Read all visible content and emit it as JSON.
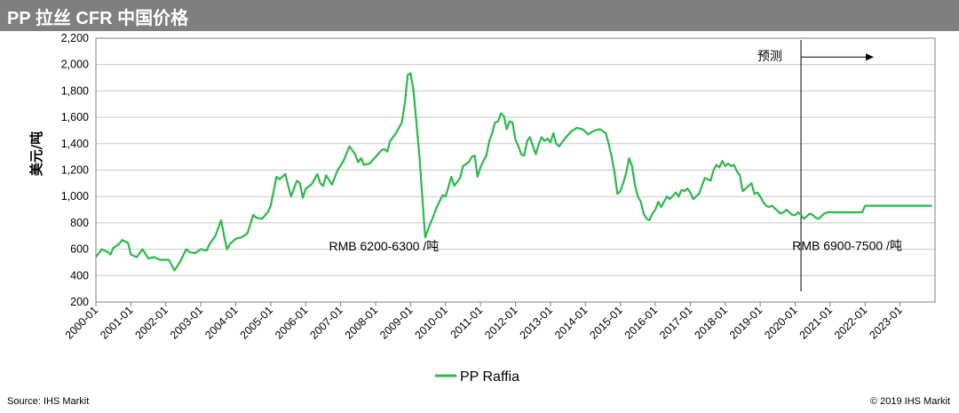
{
  "page": {
    "title": "PP 拉丝 CFR 中国价格",
    "source": "Source: IHS Markit",
    "copyright": "© 2019 IHS Markit"
  },
  "colors": {
    "title_bar": "#7f7f7f",
    "series": "#2db84a",
    "grid": "#c8c8c8"
  },
  "chart_data": {
    "type": "line",
    "title": "PP 拉丝 CFR 中国价格",
    "ylabel": "美元/吨",
    "xlabel": "",
    "ylim": [
      200,
      2200
    ],
    "yticks": [
      200,
      400,
      600,
      800,
      1000,
      1200,
      1400,
      1600,
      1800,
      2000,
      2200
    ],
    "ytick_labels": [
      "200",
      "400",
      "600",
      "800",
      "1,000",
      "1,200",
      "1,400",
      "1,600",
      "1,800",
      "2,000",
      "2,200"
    ],
    "xticks": [
      "2000-01",
      "2001-01",
      "2002-01",
      "2003-01",
      "2004-01",
      "2005-01",
      "2006-01",
      "2007-01",
      "2008-01",
      "2009-01",
      "2010-01",
      "2011-01",
      "2012-01",
      "2013-01",
      "2014-01",
      "2015-01",
      "2016-01",
      "2017-01",
      "2018-01",
      "2019-01",
      "2020-01",
      "2021-01",
      "2022-01",
      "2023-01"
    ],
    "x_end": "2023-12",
    "grid": true,
    "legend": {
      "position": "bottom",
      "entries": [
        "PP Raffia"
      ]
    },
    "annotations": [
      {
        "text": "RMB 6200-6300 /吨",
        "x": "2006-09",
        "y": 590
      },
      {
        "text": "预测",
        "x": "2018-12",
        "y": 2030
      },
      {
        "text": "RMB 6900-7500 /吨",
        "x": "2019-12",
        "y": 595
      }
    ],
    "forecast_start": "2020-03",
    "series": [
      {
        "name": "PP Raffia",
        "points": [
          [
            "2000-01",
            540
          ],
          [
            "2000-03",
            600
          ],
          [
            "2000-05",
            580
          ],
          [
            "2000-06",
            560
          ],
          [
            "2000-07",
            610
          ],
          [
            "2000-09",
            640
          ],
          [
            "2000-10",
            670
          ],
          [
            "2000-12",
            650
          ],
          [
            "2001-01",
            560
          ],
          [
            "2001-03",
            540
          ],
          [
            "2001-05",
            600
          ],
          [
            "2001-07",
            530
          ],
          [
            "2001-09",
            540
          ],
          [
            "2001-11",
            520
          ],
          [
            "2002-02",
            520
          ],
          [
            "2002-04",
            440
          ],
          [
            "2002-06",
            510
          ],
          [
            "2002-08",
            600
          ],
          [
            "2002-09",
            580
          ],
          [
            "2002-11",
            570
          ],
          [
            "2003-01",
            600
          ],
          [
            "2003-03",
            590
          ],
          [
            "2003-04",
            640
          ],
          [
            "2003-06",
            700
          ],
          [
            "2003-08",
            820
          ],
          [
            "2003-09",
            700
          ],
          [
            "2003-10",
            600
          ],
          [
            "2003-11",
            640
          ],
          [
            "2004-01",
            680
          ],
          [
            "2004-03",
            690
          ],
          [
            "2004-05",
            720
          ],
          [
            "2004-07",
            860
          ],
          [
            "2004-08",
            840
          ],
          [
            "2004-10",
            830
          ],
          [
            "2004-12",
            880
          ],
          [
            "2005-01",
            930
          ],
          [
            "2005-03",
            1150
          ],
          [
            "2005-04",
            1130
          ],
          [
            "2005-06",
            1170
          ],
          [
            "2005-07",
            1080
          ],
          [
            "2005-08",
            1000
          ],
          [
            "2005-10",
            1120
          ],
          [
            "2005-11",
            1100
          ],
          [
            "2005-12",
            990
          ],
          [
            "2006-01",
            1060
          ],
          [
            "2006-03",
            1090
          ],
          [
            "2006-05",
            1170
          ],
          [
            "2006-06",
            1100
          ],
          [
            "2006-07",
            1080
          ],
          [
            "2006-08",
            1160
          ],
          [
            "2006-10",
            1090
          ],
          [
            "2006-12",
            1200
          ],
          [
            "2007-02",
            1270
          ],
          [
            "2007-04",
            1380
          ],
          [
            "2007-06",
            1320
          ],
          [
            "2007-07",
            1260
          ],
          [
            "2007-08",
            1290
          ],
          [
            "2007-09",
            1240
          ],
          [
            "2007-11",
            1250
          ],
          [
            "2008-01",
            1300
          ],
          [
            "2008-03",
            1350
          ],
          [
            "2008-04",
            1360
          ],
          [
            "2008-05",
            1340
          ],
          [
            "2008-06",
            1420
          ],
          [
            "2008-08",
            1480
          ],
          [
            "2008-10",
            1560
          ],
          [
            "2008-11",
            1700
          ],
          [
            "2008-12",
            1920
          ],
          [
            "2009-01",
            1935
          ],
          [
            "2009-02",
            1800
          ],
          [
            "2009-04",
            1320
          ],
          [
            "2009-06",
            690
          ],
          [
            "2009-07",
            750
          ],
          [
            "2009-09",
            860
          ],
          [
            "2009-10",
            920
          ],
          [
            "2009-12",
            1010
          ],
          [
            "2010-01",
            1000
          ],
          [
            "2010-02",
            1070
          ],
          [
            "2010-03",
            1150
          ],
          [
            "2010-04",
            1080
          ],
          [
            "2010-06",
            1140
          ],
          [
            "2010-07",
            1230
          ],
          [
            "2010-09",
            1260
          ],
          [
            "2010-10",
            1300
          ],
          [
            "2010-11",
            1310
          ],
          [
            "2010-12",
            1150
          ],
          [
            "2011-01",
            1220
          ],
          [
            "2011-02",
            1270
          ],
          [
            "2011-03",
            1310
          ],
          [
            "2011-04",
            1420
          ],
          [
            "2011-05",
            1480
          ],
          [
            "2011-06",
            1560
          ],
          [
            "2011-07",
            1570
          ],
          [
            "2011-08",
            1630
          ],
          [
            "2011-09",
            1610
          ],
          [
            "2011-10",
            1510
          ],
          [
            "2011-11",
            1570
          ],
          [
            "2011-12",
            1560
          ],
          [
            "2012-01",
            1430
          ],
          [
            "2012-02",
            1380
          ],
          [
            "2012-03",
            1320
          ],
          [
            "2012-04",
            1310
          ],
          [
            "2012-05",
            1420
          ],
          [
            "2012-06",
            1450
          ],
          [
            "2012-07",
            1380
          ],
          [
            "2012-08",
            1320
          ],
          [
            "2012-09",
            1400
          ],
          [
            "2012-10",
            1450
          ],
          [
            "2012-11",
            1420
          ],
          [
            "2012-12",
            1440
          ],
          [
            "2013-01",
            1410
          ],
          [
            "2013-02",
            1480
          ],
          [
            "2013-03",
            1400
          ],
          [
            "2013-04",
            1380
          ],
          [
            "2013-05",
            1410
          ],
          [
            "2013-06",
            1440
          ],
          [
            "2013-08",
            1490
          ],
          [
            "2013-10",
            1520
          ],
          [
            "2013-12",
            1510
          ],
          [
            "2014-01",
            1490
          ],
          [
            "2014-02",
            1470
          ],
          [
            "2014-04",
            1500
          ],
          [
            "2014-06",
            1510
          ],
          [
            "2014-08",
            1480
          ],
          [
            "2014-09",
            1400
          ],
          [
            "2014-10",
            1300
          ],
          [
            "2014-11",
            1180
          ],
          [
            "2014-12",
            1020
          ],
          [
            "2015-01",
            1040
          ],
          [
            "2015-02",
            1100
          ],
          [
            "2015-03",
            1180
          ],
          [
            "2015-04",
            1290
          ],
          [
            "2015-05",
            1230
          ],
          [
            "2015-06",
            1090
          ],
          [
            "2015-07",
            1000
          ],
          [
            "2015-08",
            960
          ],
          [
            "2015-09",
            870
          ],
          [
            "2015-10",
            830
          ],
          [
            "2015-11",
            820
          ],
          [
            "2015-12",
            870
          ],
          [
            "2016-01",
            900
          ],
          [
            "2016-02",
            960
          ],
          [
            "2016-03",
            920
          ],
          [
            "2016-04",
            960
          ],
          [
            "2016-05",
            1000
          ],
          [
            "2016-06",
            980
          ],
          [
            "2016-08",
            1030
          ],
          [
            "2016-09",
            1000
          ],
          [
            "2016-10",
            1050
          ],
          [
            "2016-11",
            1040
          ],
          [
            "2016-12",
            1060
          ],
          [
            "2017-01",
            1030
          ],
          [
            "2017-02",
            980
          ],
          [
            "2017-04",
            1020
          ],
          [
            "2017-05",
            1080
          ],
          [
            "2017-06",
            1140
          ],
          [
            "2017-08",
            1120
          ],
          [
            "2017-09",
            1200
          ],
          [
            "2017-10",
            1240
          ],
          [
            "2017-11",
            1220
          ],
          [
            "2017-12",
            1270
          ],
          [
            "2018-01",
            1230
          ],
          [
            "2018-02",
            1250
          ],
          [
            "2018-03",
            1230
          ],
          [
            "2018-04",
            1240
          ],
          [
            "2018-05",
            1190
          ],
          [
            "2018-06",
            1160
          ],
          [
            "2018-07",
            1040
          ],
          [
            "2018-08",
            1060
          ],
          [
            "2018-09",
            1080
          ],
          [
            "2018-10",
            1100
          ],
          [
            "2018-11",
            1020
          ],
          [
            "2018-12",
            1030
          ],
          [
            "2019-01",
            1000
          ],
          [
            "2019-02",
            960
          ],
          [
            "2019-03",
            930
          ],
          [
            "2019-04",
            920
          ],
          [
            "2019-05",
            930
          ],
          [
            "2019-06",
            910
          ],
          [
            "2019-07",
            890
          ],
          [
            "2019-08",
            870
          ],
          [
            "2019-09",
            880
          ],
          [
            "2019-10",
            900
          ],
          [
            "2019-11",
            880
          ],
          [
            "2019-12",
            860
          ],
          [
            "2020-01",
            860
          ],
          [
            "2020-02",
            880
          ],
          [
            "2020-03",
            860
          ],
          [
            "2020-04",
            830
          ],
          [
            "2020-05",
            850
          ],
          [
            "2020-06",
            870
          ],
          [
            "2020-07",
            860
          ],
          [
            "2020-08",
            840
          ],
          [
            "2020-09",
            830
          ],
          [
            "2020-10",
            850
          ],
          [
            "2020-11",
            870
          ],
          [
            "2020-12",
            880
          ],
          [
            "2021-01",
            880
          ],
          [
            "2021-03",
            880
          ],
          [
            "2021-06",
            880
          ],
          [
            "2021-09",
            880
          ],
          [
            "2021-12",
            880
          ],
          [
            "2022-01",
            930
          ],
          [
            "2022-06",
            930
          ],
          [
            "2022-12",
            930
          ],
          [
            "2023-06",
            930
          ],
          [
            "2023-12",
            930
          ]
        ]
      }
    ]
  }
}
